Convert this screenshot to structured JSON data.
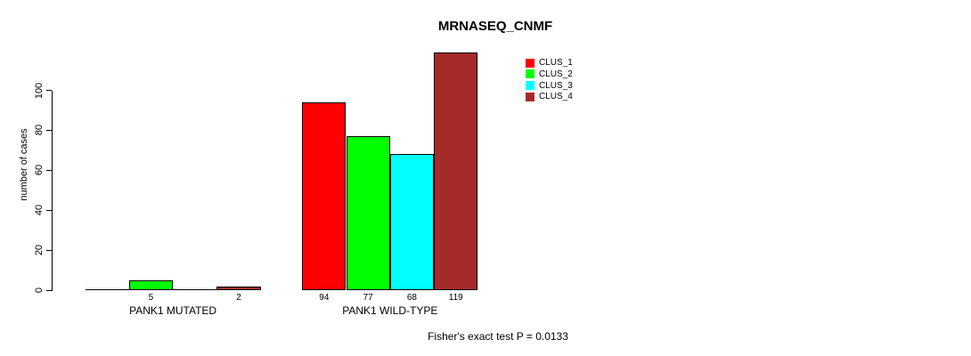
{
  "chart_data": {
    "type": "bar",
    "title": "MRNASEQ_CNMF",
    "ylabel": "number of cases",
    "xlabel": "",
    "categories": [
      "PANK1 MUTATED",
      "PANK1 WILD-TYPE"
    ],
    "series": [
      {
        "name": "CLUS_1",
        "color": "#ff0000",
        "values": [
          0,
          94
        ]
      },
      {
        "name": "CLUS_2",
        "color": "#00ff00",
        "values": [
          5,
          77
        ]
      },
      {
        "name": "CLUS_3",
        "color": "#00ffff",
        "values": [
          0,
          68
        ]
      },
      {
        "name": "CLUS_4",
        "color": "#a52a2a",
        "values": [
          2,
          119
        ]
      }
    ],
    "yticks": [
      0,
      20,
      40,
      60,
      80,
      100
    ],
    "ylim": [
      0,
      100
    ],
    "grid": false,
    "legend_position": "top-right",
    "value_labels_shown": [
      5,
      2,
      94,
      77,
      68,
      119
    ],
    "footnote": "Fisher's exact test P = 0.0133"
  }
}
